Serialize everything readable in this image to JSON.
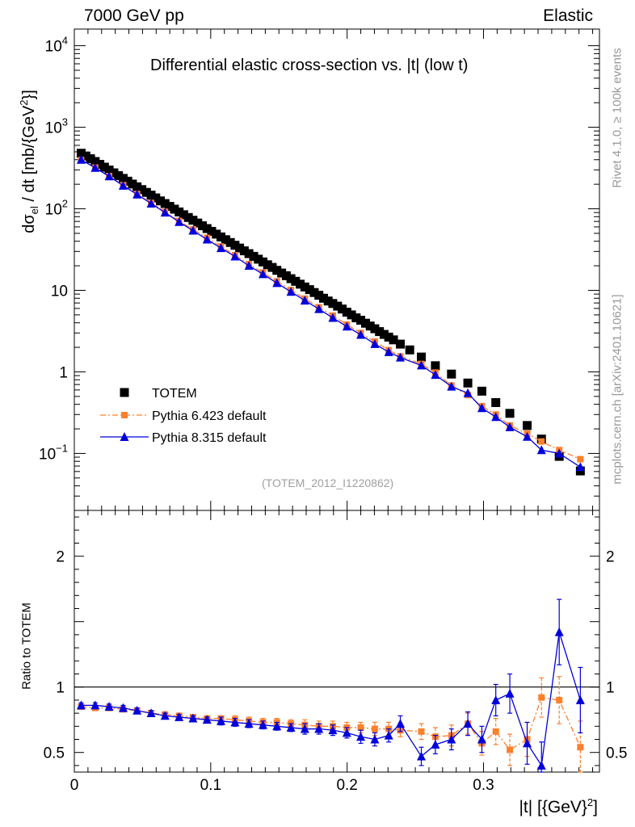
{
  "header": {
    "left": "7000 GeV pp",
    "right": "Elastic",
    "side_rivet": "Rivet 4.1.0, ≥ 100k events",
    "side_mcplots": "mcplots.cern.ch [arXiv:2401.10621]"
  },
  "chart_data": [
    {
      "type": "scatter",
      "title": "Differential elastic cross-section vs. |t| (low t)",
      "ylabel": "dσ_el / dt [mb/{GeV}^2]",
      "ylabel_parts": {
        "d": "dσ",
        "sub": "el",
        "rest": " / dt [mb/{GeV",
        "sup": "2",
        "end": "}]"
      },
      "yscale": "log",
      "ylim": [
        0.02,
        16000
      ],
      "xlim": [
        0,
        0.385
      ],
      "ytick_labels": [
        {
          "value": 10000,
          "base": "10",
          "exp": "4"
        },
        {
          "value": 1000,
          "base": "10",
          "exp": "3"
        },
        {
          "value": 100,
          "base": "10",
          "exp": "2"
        },
        {
          "value": 10,
          "base": "10",
          "exp": ""
        },
        {
          "value": 1,
          "base": "1",
          "exp": ""
        },
        {
          "value": 0.1,
          "base": "10",
          "exp": "−1"
        }
      ],
      "watermark": "(TOTEM_2012_I1220862)",
      "legend_position": "lower-left",
      "series": [
        {
          "name": "TOTEM",
          "color": "#000000",
          "marker": "square",
          "x": [
            0.005,
            0.0085,
            0.0119,
            0.0153,
            0.0187,
            0.0221,
            0.0255,
            0.029,
            0.0324,
            0.0358,
            0.0392,
            0.0426,
            0.046,
            0.0495,
            0.0529,
            0.0563,
            0.0597,
            0.0631,
            0.0665,
            0.07,
            0.0734,
            0.0768,
            0.0802,
            0.0836,
            0.087,
            0.0905,
            0.0939,
            0.0973,
            0.1007,
            0.1041,
            0.1075,
            0.111,
            0.1144,
            0.1178,
            0.1212,
            0.1246,
            0.128,
            0.1315,
            0.1349,
            0.1383,
            0.1417,
            0.1451,
            0.1485,
            0.152,
            0.1554,
            0.1588,
            0.1622,
            0.1656,
            0.169,
            0.1725,
            0.1759,
            0.1793,
            0.1827,
            0.1861,
            0.1895,
            0.193,
            0.1964,
            0.1998,
            0.2032,
            0.2066,
            0.21,
            0.2135,
            0.2169,
            0.2203,
            0.2237,
            0.2271,
            0.2305,
            0.234,
            0.239,
            0.2459,
            0.2544,
            0.2647,
            0.2765,
            0.2885,
            0.2988,
            0.309,
            0.3193,
            0.332,
            0.3425,
            0.3555,
            0.371
          ],
          "values": [
            480,
            444,
            411,
            380,
            351,
            324,
            299,
            276,
            255,
            236,
            218,
            201,
            186,
            172,
            159,
            147,
            136,
            125,
            116,
            107,
            99,
            91.5,
            84.6,
            78.2,
            72.4,
            66.9,
            61.9,
            57.2,
            52.9,
            48.9,
            45.2,
            41.8,
            38.6,
            35.7,
            33,
            30.5,
            28.2,
            26.1,
            24.1,
            22.3,
            20.6,
            19.1,
            17.6,
            16.3,
            15.1,
            13.9,
            12.9,
            11.9,
            11.0,
            10.2,
            9.4,
            8.7,
            8.0,
            7.4,
            6.9,
            6.4,
            5.9,
            5.4,
            5.0,
            4.6,
            4.3,
            3.95,
            3.65,
            3.38,
            3.12,
            2.88,
            2.67,
            2.47,
            2.19,
            1.86,
            1.52,
            1.19,
            0.94,
            0.73,
            0.58,
            0.42,
            0.31,
            0.22,
            0.15,
            0.092,
            0.061
          ]
        },
        {
          "name": "Pythia 6.423 default",
          "color": "#ff7f2a",
          "marker": "square",
          "linestyle": "dashdot",
          "x": [
            0.005,
            0.0153,
            0.0255,
            0.0358,
            0.046,
            0.0563,
            0.0665,
            0.0768,
            0.087,
            0.0973,
            0.1075,
            0.1178,
            0.128,
            0.1383,
            0.1485,
            0.1588,
            0.169,
            0.1793,
            0.1895,
            0.1998,
            0.21,
            0.2203,
            0.2305,
            0.239,
            0.2544,
            0.2647,
            0.2765,
            0.2885,
            0.2988,
            0.309,
            0.3193,
            0.332,
            0.3425,
            0.3555,
            0.371
          ],
          "values": [
            395,
            320,
            252,
            195,
            152,
            118,
            92,
            71,
            56,
            44,
            34.5,
            27,
            21,
            16.5,
            12.9,
            10.1,
            7.9,
            6.2,
            4.9,
            3.8,
            3.0,
            2.35,
            1.85,
            1.55,
            1.25,
            0.98,
            0.68,
            0.52,
            0.38,
            0.3,
            0.22,
            0.175,
            0.14,
            0.11,
            0.085
          ]
        },
        {
          "name": "Pythia 8.315 default",
          "color": "#0000dd",
          "marker": "triangle",
          "linestyle": "solid",
          "x": [
            0.005,
            0.0153,
            0.0255,
            0.0358,
            0.046,
            0.0563,
            0.0665,
            0.0768,
            0.087,
            0.0973,
            0.1075,
            0.1178,
            0.128,
            0.1383,
            0.1485,
            0.1588,
            0.169,
            0.1793,
            0.1895,
            0.1998,
            0.21,
            0.2203,
            0.2305,
            0.239,
            0.2544,
            0.2647,
            0.2765,
            0.2885,
            0.2988,
            0.309,
            0.3193,
            0.332,
            0.3425,
            0.3555,
            0.371
          ],
          "values": [
            400,
            318,
            250,
            192,
            150,
            116,
            90,
            69,
            54,
            42,
            33,
            26,
            20,
            15.8,
            12.3,
            9.6,
            7.5,
            5.9,
            4.6,
            3.6,
            2.85,
            2.2,
            1.75,
            1.5,
            1.2,
            0.92,
            0.66,
            0.55,
            0.36,
            0.28,
            0.21,
            0.16,
            0.11,
            0.1,
            0.068
          ]
        }
      ]
    },
    {
      "type": "scatter",
      "ylabel": "Ratio to TOTEM",
      "xlabel": "|t| [{GeV}^2]",
      "xlabel_parts": {
        "main": "|t|  [{GeV}",
        "sup": "2",
        "end": "]"
      },
      "ylim": [
        0.35,
        2.35
      ],
      "xlim": [
        0,
        0.385
      ],
      "reference_line": 1,
      "ytick_labels": [
        "0.5",
        "1",
        "2"
      ],
      "xtick_labels": [
        "0",
        "0.1",
        "0.2",
        "0.3"
      ],
      "series": [
        {
          "name": "Pythia 6.423 default",
          "color": "#ff7f2a",
          "x": [
            0.005,
            0.0153,
            0.0255,
            0.0358,
            0.046,
            0.0563,
            0.0665,
            0.0768,
            0.087,
            0.0973,
            0.1075,
            0.1178,
            0.128,
            0.1383,
            0.1485,
            0.1588,
            0.169,
            0.1793,
            0.1895,
            0.1998,
            0.21,
            0.2203,
            0.2305,
            0.239,
            0.2544,
            0.2647,
            0.2765,
            0.2885,
            0.2988,
            0.309,
            0.3193,
            0.332,
            0.3425,
            0.3555,
            0.371
          ],
          "values": [
            0.85,
            0.84,
            0.84,
            0.83,
            0.82,
            0.8,
            0.79,
            0.78,
            0.77,
            0.76,
            0.76,
            0.75,
            0.74,
            0.73,
            0.73,
            0.72,
            0.71,
            0.7,
            0.7,
            0.69,
            0.69,
            0.68,
            0.68,
            0.67,
            0.66,
            0.62,
            0.63,
            0.72,
            0.57,
            0.66,
            0.52,
            0.6,
            0.92,
            0.9,
            0.54
          ],
          "errors": [
            0.02,
            0.02,
            0.02,
            0.02,
            0.02,
            0.02,
            0.02,
            0.02,
            0.02,
            0.02,
            0.02,
            0.03,
            0.03,
            0.03,
            0.03,
            0.03,
            0.04,
            0.04,
            0.04,
            0.04,
            0.04,
            0.05,
            0.05,
            0.05,
            0.06,
            0.07,
            0.08,
            0.08,
            0.09,
            0.1,
            0.12,
            0.13,
            0.15,
            0.18,
            0.2
          ]
        },
        {
          "name": "Pythia 8.315 default",
          "color": "#0000dd",
          "x": [
            0.005,
            0.0153,
            0.0255,
            0.0358,
            0.046,
            0.0563,
            0.0665,
            0.0768,
            0.087,
            0.0973,
            0.1075,
            0.1178,
            0.128,
            0.1383,
            0.1485,
            0.1588,
            0.169,
            0.1793,
            0.1895,
            0.1998,
            0.21,
            0.2203,
            0.2305,
            0.239,
            0.2544,
            0.2647,
            0.2765,
            0.2885,
            0.2988,
            0.309,
            0.3193,
            0.332,
            0.3425,
            0.3555,
            0.371
          ],
          "values": [
            0.86,
            0.86,
            0.85,
            0.84,
            0.82,
            0.8,
            0.78,
            0.77,
            0.76,
            0.75,
            0.74,
            0.73,
            0.72,
            0.71,
            0.7,
            0.69,
            0.68,
            0.68,
            0.67,
            0.65,
            0.62,
            0.6,
            0.63,
            0.72,
            0.47,
            0.56,
            0.6,
            0.72,
            0.6,
            0.9,
            0.95,
            0.57,
            0.4,
            1.42,
            0.9
          ],
          "errors": [
            0.02,
            0.02,
            0.02,
            0.02,
            0.02,
            0.02,
            0.02,
            0.02,
            0.02,
            0.02,
            0.03,
            0.03,
            0.03,
            0.03,
            0.03,
            0.03,
            0.04,
            0.04,
            0.04,
            0.04,
            0.05,
            0.05,
            0.05,
            0.06,
            0.07,
            0.07,
            0.08,
            0.09,
            0.1,
            0.12,
            0.15,
            0.16,
            0.18,
            0.25,
            0.25
          ]
        }
      ]
    }
  ]
}
